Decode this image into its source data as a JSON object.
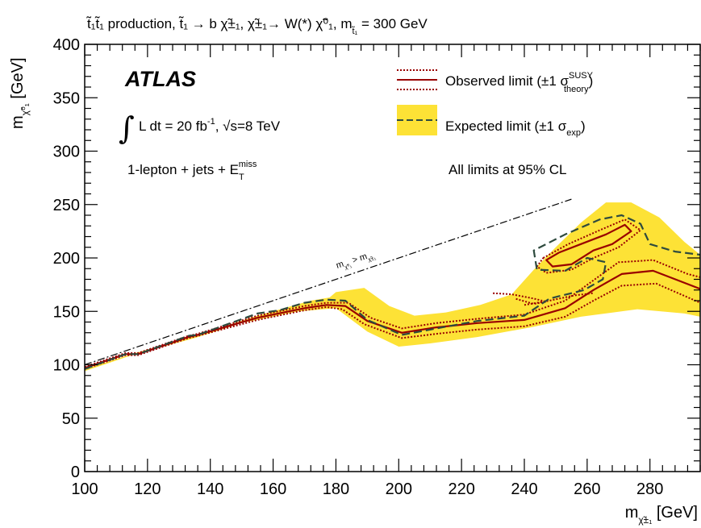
{
  "chart_data": {
    "type": "line",
    "title_parts": {
      "main": "t̃₁t̃₁ production, t̃₁ → b χ̃±₁, χ̃±₁→ W(*) χ̃⁰₁, m",
      "sub": "t̃₁",
      "tail": " = 300 GeV"
    },
    "xlabel": "m",
    "xlabel_sub": "χ̃±₁",
    "xlabel_unit": " [GeV]",
    "ylabel": "m",
    "ylabel_sub": "χ̃⁰₁",
    "ylabel_unit": " [GeV]",
    "xlim": [
      100,
      296
    ],
    "ylim": [
      0,
      400
    ],
    "x_ticks": [
      100,
      120,
      140,
      160,
      180,
      200,
      220,
      240,
      260,
      280
    ],
    "y_ticks": [
      0,
      50,
      100,
      150,
      200,
      250,
      300,
      350,
      400
    ],
    "atlas_label": "ATLAS",
    "lumi": {
      "pre": "L dt = 20 fb",
      "sup": "-1",
      "mid": ", √s=8 TeV"
    },
    "channel": {
      "pre": "1-lepton + jets + E",
      "sub": "T",
      "sup": "miss"
    },
    "cl_note": "All limits at 95% CL",
    "diag_label": {
      "m1": "m",
      "s1": "χ̃⁰₁",
      "gt": " > m",
      "s2": "χ̃±₁"
    },
    "legend": {
      "observed": {
        "pre": "Observed limit (±1 σ",
        "sup": "SUSY",
        "sub": "theory",
        "post": ")"
      },
      "expected": {
        "pre": "Expected limit (±1 σ",
        "sub": "exp",
        "post": ")"
      }
    },
    "colors": {
      "observed": "#990000",
      "expected": "#2e4a3e",
      "band": "#fde236",
      "diag": "#000000"
    },
    "band": [
      [
        100,
        96
      ],
      [
        115,
        110
      ],
      [
        135,
        127
      ],
      [
        155,
        146
      ],
      [
        172,
        160
      ],
      [
        178,
        163
      ],
      [
        180,
        168
      ],
      [
        189,
        172
      ],
      [
        197,
        155
      ],
      [
        205,
        146
      ],
      [
        215,
        149
      ],
      [
        226,
        156
      ],
      [
        236,
        166
      ],
      [
        243,
        189
      ],
      [
        250,
        210
      ],
      [
        258,
        233
      ],
      [
        266,
        252
      ],
      [
        274,
        252
      ],
      [
        283,
        238
      ],
      [
        291,
        215
      ],
      [
        296,
        203
      ],
      [
        296,
        145
      ],
      [
        291,
        148
      ],
      [
        276,
        152
      ],
      [
        258,
        145
      ],
      [
        242,
        135
      ],
      [
        225,
        126
      ],
      [
        210,
        120
      ],
      [
        200,
        117
      ],
      [
        190,
        131
      ],
      [
        180,
        153
      ],
      [
        168,
        150
      ],
      [
        150,
        139
      ],
      [
        135,
        125
      ],
      [
        115,
        109
      ],
      [
        100,
        94
      ]
    ],
    "series": [
      {
        "name": "observed",
        "style": "solid",
        "points": [
          [
            100,
            97
          ],
          [
            113,
            110
          ],
          [
            117,
            110
          ],
          [
            133,
            126
          ],
          [
            136,
            128
          ],
          [
            155,
            144
          ],
          [
            170,
            153
          ],
          [
            177,
            156
          ],
          [
            183,
            155
          ],
          [
            190,
            141
          ],
          [
            201,
            130
          ],
          [
            212,
            135
          ],
          [
            225,
            139
          ],
          [
            240,
            142
          ],
          [
            253,
            153
          ],
          [
            262,
            170
          ],
          [
            271,
            185
          ],
          [
            281,
            188
          ],
          [
            296,
            171
          ]
        ]
      },
      {
        "name": "observed_plus",
        "style": "dotted",
        "points": [
          [
            100,
            98
          ],
          [
            113,
            111
          ],
          [
            117,
            111
          ],
          [
            133,
            127
          ],
          [
            136,
            129
          ],
          [
            155,
            146
          ],
          [
            170,
            155
          ],
          [
            177,
            158
          ],
          [
            184,
            158
          ],
          [
            191,
            144
          ],
          [
            201,
            134
          ],
          [
            212,
            139
          ],
          [
            225,
            143
          ],
          [
            240,
            147
          ],
          [
            253,
            160
          ],
          [
            262,
            179
          ],
          [
            270,
            196
          ],
          [
            281,
            198
          ],
          [
            292,
            185
          ],
          [
            296,
            182
          ]
        ]
      },
      {
        "name": "observed_minus",
        "style": "dotted",
        "points": [
          [
            100,
            96
          ],
          [
            113,
            109
          ],
          [
            117,
            109
          ],
          [
            133,
            125
          ],
          [
            136,
            127
          ],
          [
            155,
            142
          ],
          [
            170,
            151
          ],
          [
            177,
            154
          ],
          [
            182,
            152
          ],
          [
            189,
            138
          ],
          [
            201,
            125
          ],
          [
            212,
            129
          ],
          [
            225,
            133
          ],
          [
            240,
            136
          ],
          [
            253,
            145
          ],
          [
            262,
            160
          ],
          [
            271,
            174
          ],
          [
            282,
            176
          ],
          [
            296,
            158
          ]
        ]
      },
      {
        "name": "observed_island",
        "style": "solid",
        "points": [
          [
            251,
            205
          ],
          [
            258,
            213
          ],
          [
            266,
            222
          ],
          [
            272,
            231
          ],
          [
            274,
            225
          ],
          [
            268,
            213
          ],
          [
            262,
            207
          ],
          [
            255,
            194
          ],
          [
            249,
            192
          ],
          [
            247,
            198
          ],
          [
            251,
            205
          ]
        ]
      },
      {
        "name": "observed_island_outer",
        "style": "dotted",
        "points": [
          [
            246,
            200
          ],
          [
            254,
            213
          ],
          [
            264,
            226
          ],
          [
            272,
            236
          ],
          [
            277,
            226
          ],
          [
            270,
            210
          ],
          [
            262,
            200
          ],
          [
            255,
            189
          ],
          [
            247,
            186
          ],
          [
            244,
            192
          ],
          [
            246,
            200
          ]
        ]
      },
      {
        "name": "observed_small_plus",
        "style": "dotted",
        "points": [
          [
            230,
            167
          ],
          [
            236,
            166
          ],
          [
            243,
            162
          ],
          [
            247,
            159
          ],
          [
            243,
            157
          ],
          [
            237,
            162
          ]
        ]
      },
      {
        "name": "observed_small_minus",
        "style": "dotted",
        "points": [
          [
            240,
            156
          ],
          [
            248,
            160
          ],
          [
            256,
            165
          ],
          [
            262,
            167
          ]
        ]
      },
      {
        "name": "expected",
        "style": "dashed",
        "points": [
          [
            100,
            96
          ],
          [
            113,
            110
          ],
          [
            117,
            110
          ],
          [
            133,
            127
          ],
          [
            136,
            128
          ],
          [
            155,
            148
          ],
          [
            162,
            151
          ],
          [
            170,
            158
          ],
          [
            177,
            161
          ],
          [
            183,
            160
          ],
          [
            190,
            142
          ],
          [
            201,
            128
          ],
          [
            212,
            134
          ],
          [
            225,
            141
          ],
          [
            240,
            146
          ],
          [
            248,
            162
          ],
          [
            259,
            170
          ],
          [
            265,
            180
          ],
          [
            266,
            196
          ],
          [
            260,
            200
          ],
          [
            253,
            188
          ],
          [
            244,
            189
          ],
          [
            243,
            207
          ],
          [
            253,
            222
          ],
          [
            264,
            236
          ],
          [
            271,
            240
          ],
          [
            277,
            232
          ],
          [
            280,
            213
          ],
          [
            288,
            206
          ],
          [
            296,
            203
          ]
        ]
      }
    ]
  }
}
